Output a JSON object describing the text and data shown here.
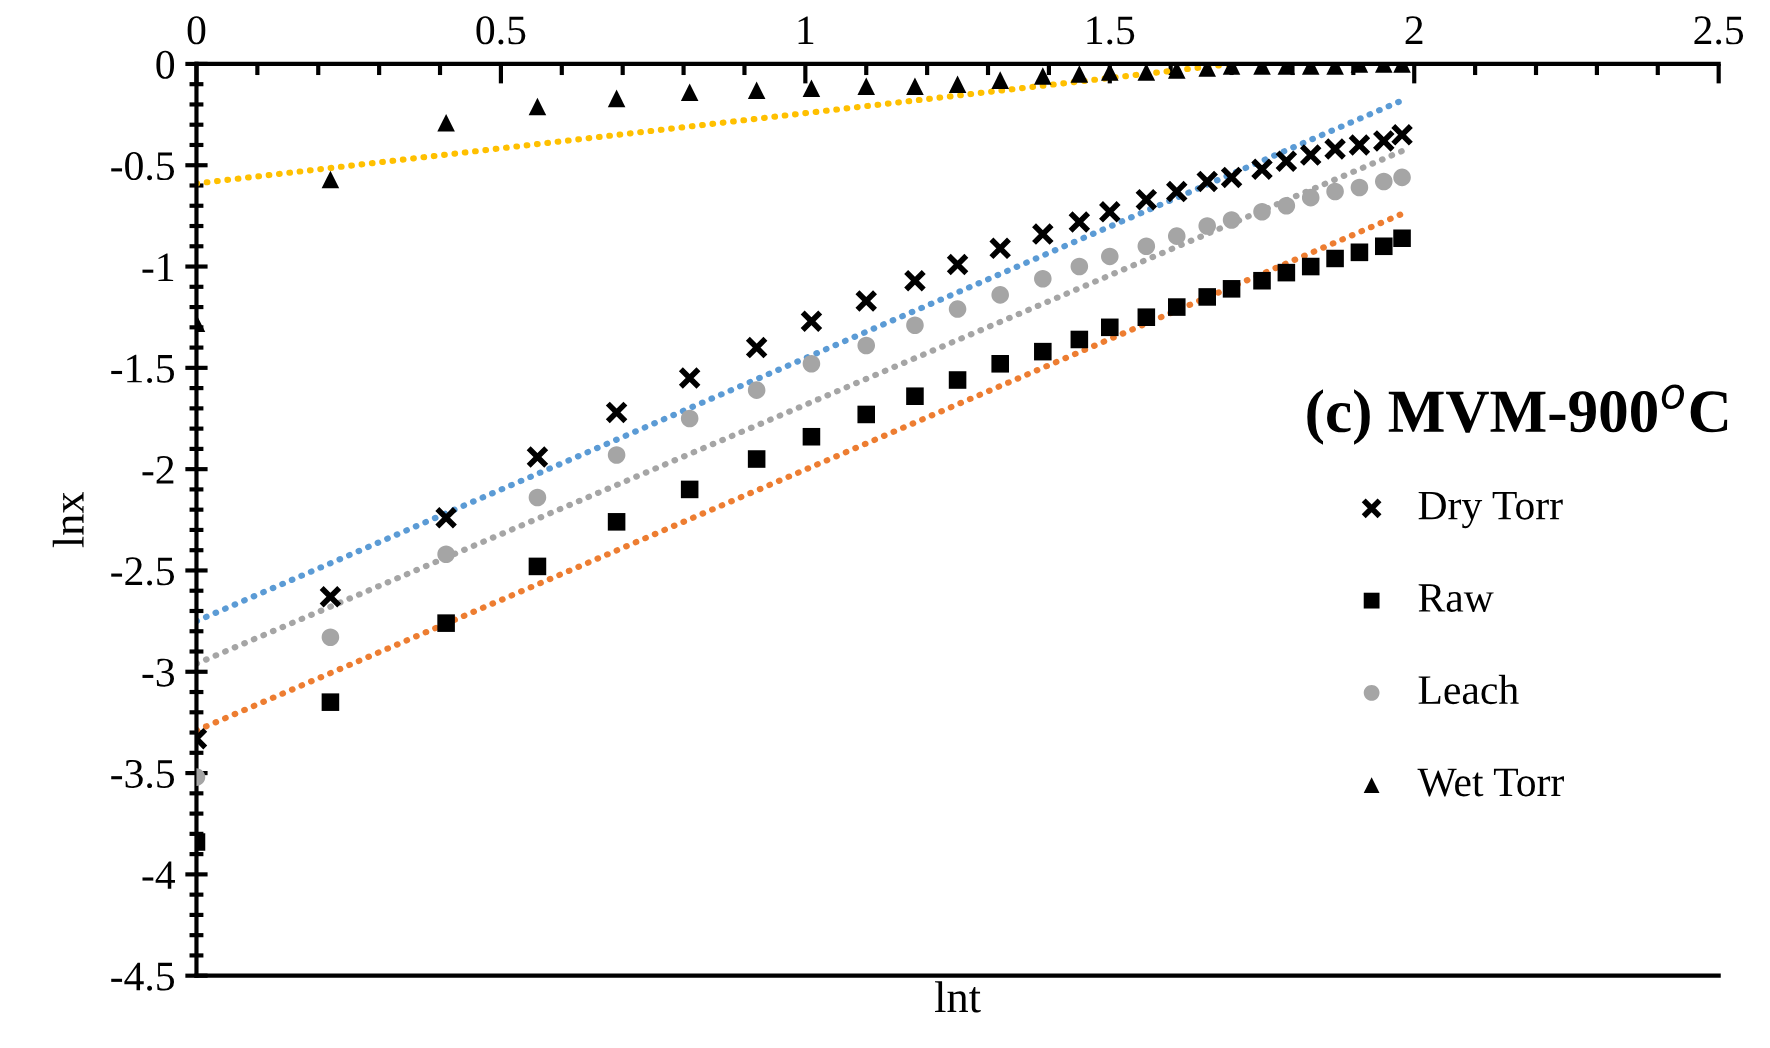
{
  "chart_data": {
    "type": "scatter",
    "xlabel": "lnt",
    "ylabel": "lnx",
    "x": [
      0,
      0.22,
      0.41,
      0.56,
      0.69,
      0.81,
      0.92,
      1.01,
      1.1,
      1.18,
      1.25,
      1.32,
      1.39,
      1.45,
      1.5,
      1.56,
      1.61,
      1.66,
      1.7,
      1.75,
      1.79,
      1.83,
      1.87,
      1.91,
      1.95,
      1.98
    ],
    "series": [
      {
        "name": "Dry Torr",
        "color": "#000000",
        "marker": "cross",
        "values": [
          -3.33,
          -2.63,
          -2.24,
          -1.94,
          -1.72,
          -1.55,
          -1.4,
          -1.27,
          -1.17,
          -1.07,
          -0.99,
          -0.91,
          -0.84,
          -0.78,
          -0.73,
          -0.67,
          -0.63,
          -0.58,
          -0.56,
          -0.52,
          -0.48,
          -0.45,
          -0.42,
          -0.4,
          -0.38,
          -0.35
        ]
      },
      {
        "name": "Raw",
        "color": "#000000",
        "marker": "square",
        "values": [
          -3.84,
          -3.15,
          -2.76,
          -2.48,
          -2.26,
          -2.1,
          -1.95,
          -1.84,
          -1.73,
          -1.64,
          -1.56,
          -1.48,
          -1.42,
          -1.36,
          -1.3,
          -1.25,
          -1.2,
          -1.15,
          -1.11,
          -1.07,
          -1.03,
          -1.0,
          -0.96,
          -0.93,
          -0.9,
          -0.86
        ]
      },
      {
        "name": "Leach",
        "color": "#a5a5a5",
        "marker": "circle",
        "values": [
          -3.52,
          -2.83,
          -2.42,
          -2.14,
          -1.93,
          -1.75,
          -1.61,
          -1.48,
          -1.39,
          -1.29,
          -1.21,
          -1.14,
          -1.06,
          -1.0,
          -0.95,
          -0.9,
          -0.85,
          -0.8,
          -0.77,
          -0.73,
          -0.7,
          -0.66,
          -0.63,
          -0.61,
          -0.58,
          -0.56
        ]
      },
      {
        "name": "Wet Torr",
        "color": "#000000",
        "marker": "triangle",
        "values": [
          -1.28,
          -0.57,
          -0.29,
          -0.21,
          -0.17,
          -0.14,
          -0.13,
          -0.12,
          -0.11,
          -0.11,
          -0.1,
          -0.08,
          -0.06,
          -0.05,
          -0.04,
          -0.04,
          -0.03,
          -0.02,
          -0.01,
          -0.01,
          -0.01,
          -0.01,
          -0.01,
          0,
          0,
          0
        ]
      },
      {
        "type": "line",
        "line_style": "dotted",
        "color": "#5b9bd5",
        "x": [
          0,
          1.98
        ],
        "values": [
          -2.75,
          -0.18
        ]
      },
      {
        "type": "line",
        "line_style": "dotted",
        "color": "#ed7d31",
        "x": [
          0,
          1.98
        ],
        "values": [
          -3.29,
          -0.74
        ]
      },
      {
        "type": "line",
        "line_style": "dotted",
        "color": "#a5a5a5",
        "x": [
          0,
          1.98
        ],
        "values": [
          -2.96,
          -0.43
        ]
      },
      {
        "type": "line",
        "line_style": "dotted",
        "color": "#ffc000",
        "x": [
          0,
          1.7
        ],
        "values": [
          -0.59,
          0
        ]
      }
    ],
    "xlim": [
      0,
      2.5
    ],
    "xticks": [
      0,
      0.5,
      1,
      1.5,
      2,
      2.5
    ],
    "ylim": [
      -4.5,
      0
    ],
    "yticks": [
      -4.5,
      -4,
      -3.5,
      -3,
      -2.5,
      -2,
      -1.5,
      -1,
      -0.5,
      0
    ],
    "grid": false,
    "legend": "right",
    "annotations": [
      "(c) MVM-900$^{o}$C"
    ]
  }
}
